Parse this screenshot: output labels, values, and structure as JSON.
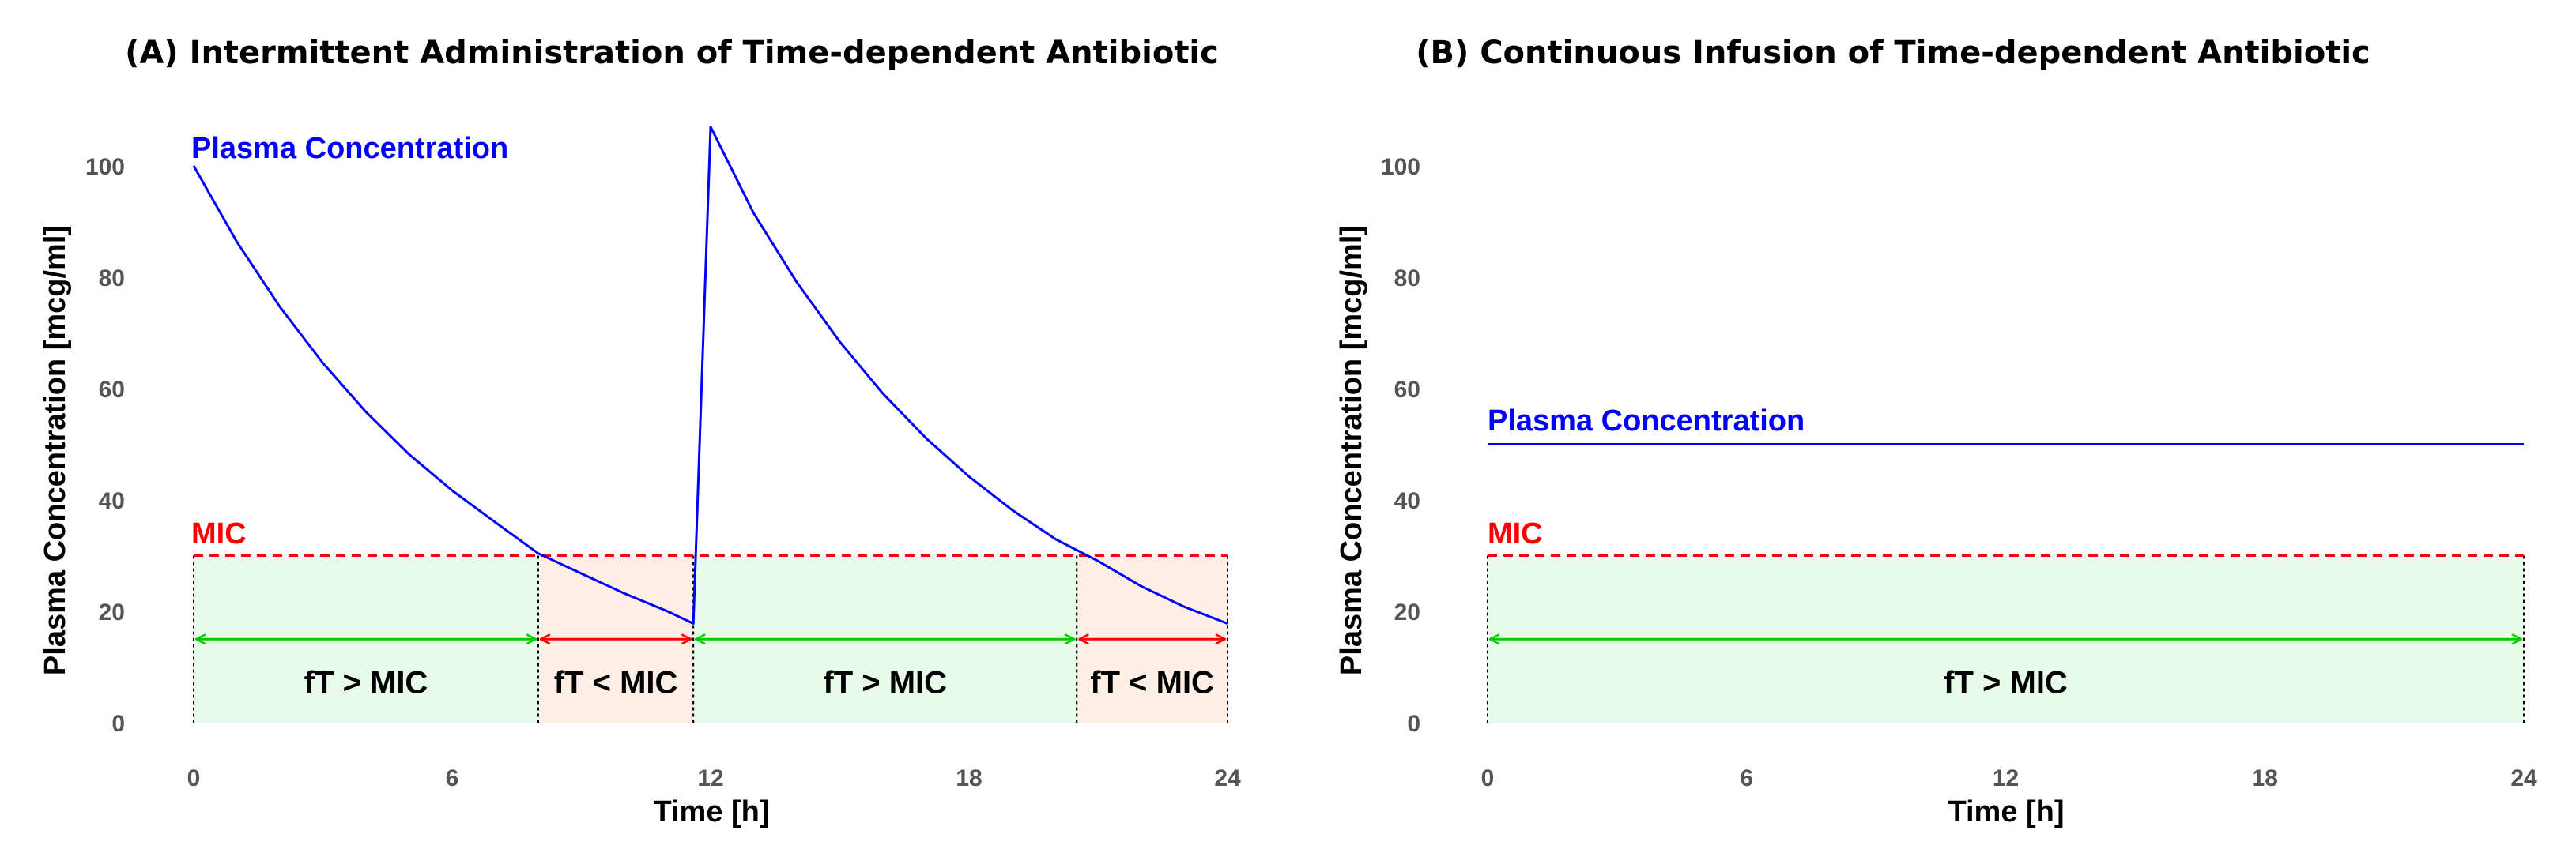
{
  "chart_data": [
    {
      "type": "line",
      "title": "(A) Intermittent Administration of Time-dependent Antibiotic",
      "xlabel": "Time [h]",
      "ylabel": "Plasma Concentration [mcg/ml]",
      "xlim": [
        0,
        24
      ],
      "ylim": [
        0,
        100
      ],
      "xticks": [
        0,
        6,
        12,
        18,
        24
      ],
      "yticks": [
        0,
        20,
        40,
        60,
        80,
        100
      ],
      "series": [
        {
          "name": "Plasma Concentration",
          "color": "#0000ff",
          "x": [
            0,
            1,
            2,
            3,
            4,
            5,
            6,
            7,
            8,
            9,
            10,
            11,
            11.6,
            12,
            13,
            14,
            15,
            16,
            17,
            18,
            19,
            20,
            21,
            22,
            23,
            24
          ],
          "y": [
            100,
            86.4,
            74.7,
            64.6,
            55.8,
            48.2,
            41.7,
            36.0,
            30.4,
            26.8,
            23.2,
            20.0,
            17.8,
            107,
            91.5,
            79.1,
            68.4,
            59.1,
            51.1,
            44.2,
            38.2,
            33.0,
            29.0,
            24.5,
            20.8,
            17.8
          ]
        }
      ],
      "mic": {
        "label": "MIC",
        "value": 30,
        "color": "#ff0000"
      },
      "regions": [
        {
          "start": 0,
          "end": 8,
          "label": "fT > MIC",
          "kind": "above"
        },
        {
          "start": 8,
          "end": 11.6,
          "label": "fT < MIC",
          "kind": "below"
        },
        {
          "start": 11.6,
          "end": 20.5,
          "label": "fT > MIC",
          "kind": "above"
        },
        {
          "start": 20.5,
          "end": 24,
          "label": "fT < MIC",
          "kind": "below"
        }
      ],
      "arrow_level": 15
    },
    {
      "type": "line",
      "title": "(B) Continuous Infusion of Time-dependent Antibiotic",
      "xlabel": "Time [h]",
      "ylabel": "Plasma Concentration [mcg/ml]",
      "xlim": [
        0,
        24
      ],
      "ylim": [
        0,
        100
      ],
      "xticks": [
        0,
        6,
        12,
        18,
        24
      ],
      "yticks": [
        0,
        20,
        40,
        60,
        80,
        100
      ],
      "series": [
        {
          "name": "Plasma Concentration",
          "color": "#0000ff",
          "x": [
            0,
            24
          ],
          "y": [
            50,
            50
          ]
        }
      ],
      "mic": {
        "label": "MIC",
        "value": 30,
        "color": "#ff0000"
      },
      "regions": [
        {
          "start": 0,
          "end": 24,
          "label": "fT > MIC",
          "kind": "above"
        }
      ],
      "arrow_level": 15
    }
  ],
  "colors": {
    "above_fill": "#e8fbe8",
    "below_fill": "#fdeee6",
    "above_arrow": "#00cc00",
    "below_arrow": "#ff0000"
  }
}
